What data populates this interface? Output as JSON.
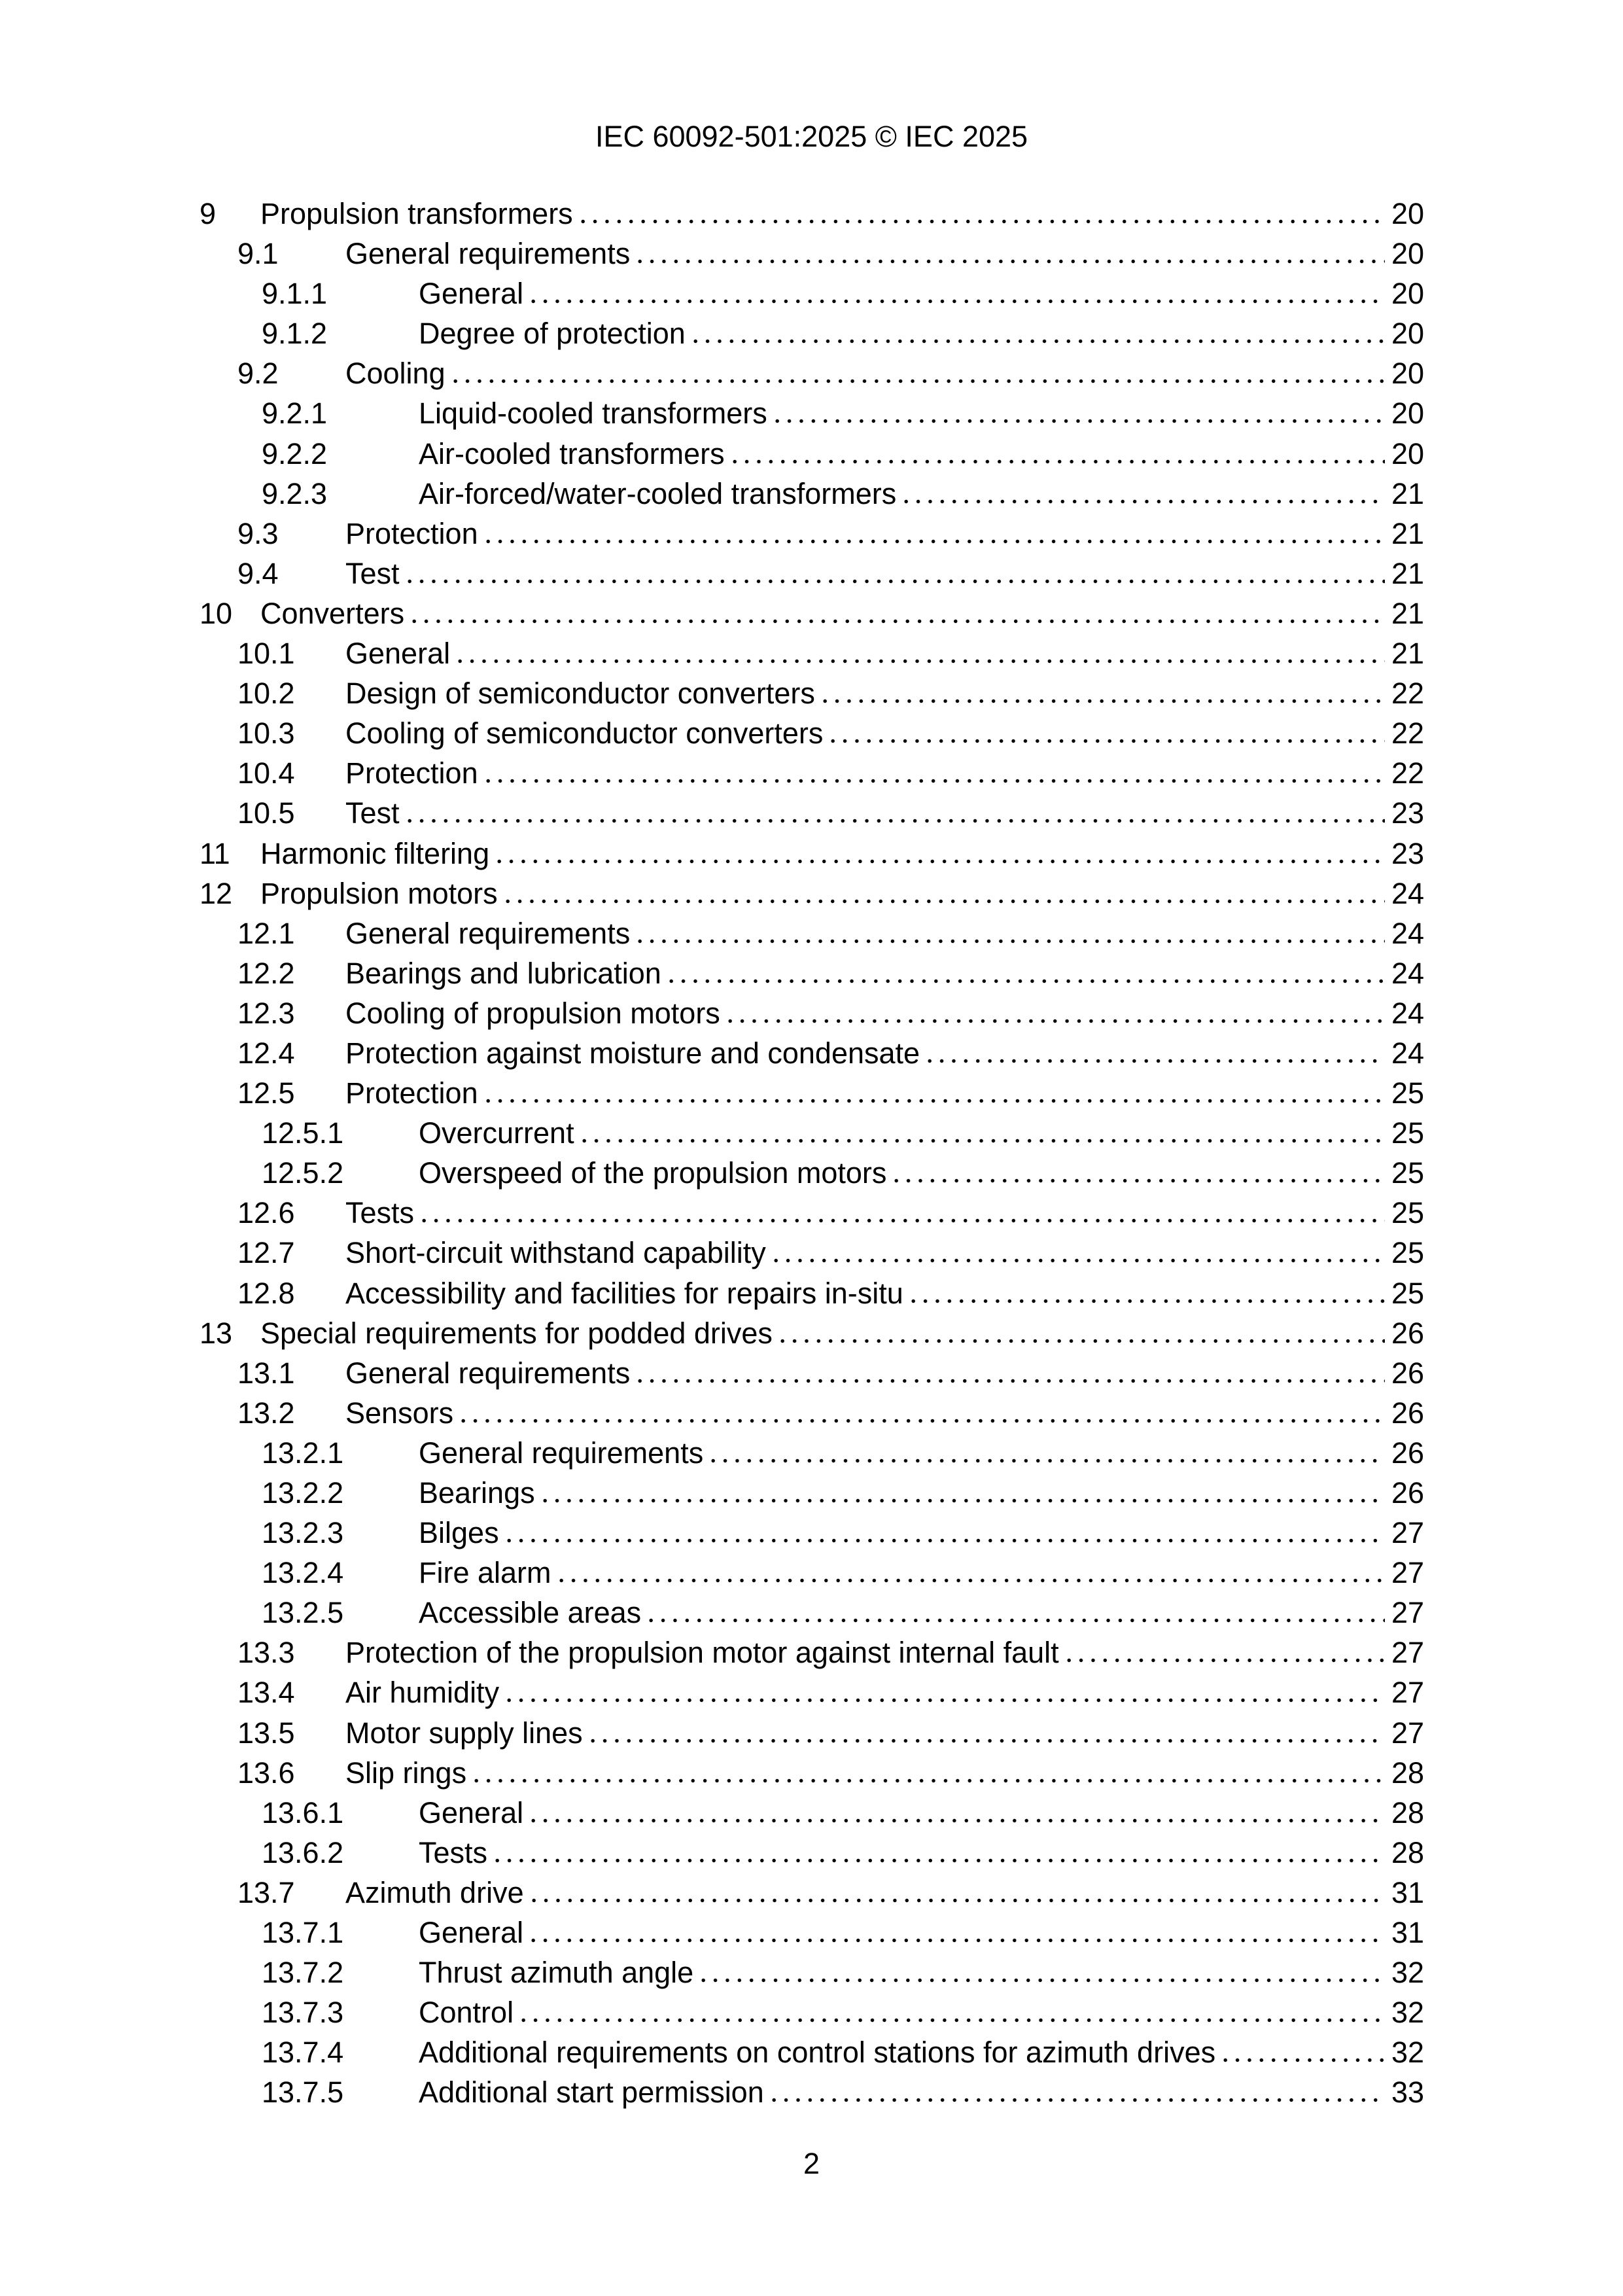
{
  "header": {
    "text": "IEC 60092-501:2025 © IEC 2025"
  },
  "footer": {
    "page_number": "2"
  },
  "toc": {
    "entries": [
      {
        "number": "9",
        "title": "Propulsion transformers",
        "page": "20",
        "level": 1
      },
      {
        "number": "9.1",
        "title": "General requirements",
        "page": "20",
        "level": 2
      },
      {
        "number": "9.1.1",
        "title": "General",
        "page": "20",
        "level": 3
      },
      {
        "number": "9.1.2",
        "title": "Degree of protection",
        "page": "20",
        "level": 3
      },
      {
        "number": "9.2",
        "title": "Cooling",
        "page": "20",
        "level": 2
      },
      {
        "number": "9.2.1",
        "title": "Liquid-cooled transformers",
        "page": "20",
        "level": 3
      },
      {
        "number": "9.2.2",
        "title": "Air-cooled transformers",
        "page": "20",
        "level": 3
      },
      {
        "number": "9.2.3",
        "title": "Air-forced/water-cooled transformers",
        "page": "21",
        "level": 3
      },
      {
        "number": "9.3",
        "title": "Protection",
        "page": "21",
        "level": 2
      },
      {
        "number": "9.4",
        "title": "Test",
        "page": "21",
        "level": 2
      },
      {
        "number": "10",
        "title": "Converters",
        "page": "21",
        "level": 1
      },
      {
        "number": "10.1",
        "title": "General",
        "page": "21",
        "level": 2
      },
      {
        "number": "10.2",
        "title": "Design of semiconductor converters",
        "page": "22",
        "level": 2
      },
      {
        "number": "10.3",
        "title": "Cooling of semiconductor converters",
        "page": "22",
        "level": 2
      },
      {
        "number": "10.4",
        "title": "Protection",
        "page": "22",
        "level": 2
      },
      {
        "number": "10.5",
        "title": "Test",
        "page": "23",
        "level": 2
      },
      {
        "number": "11",
        "title": "Harmonic filtering",
        "page": "23",
        "level": 1
      },
      {
        "number": "12",
        "title": "Propulsion motors",
        "page": "24",
        "level": 1
      },
      {
        "number": "12.1",
        "title": "General requirements",
        "page": "24",
        "level": 2
      },
      {
        "number": "12.2",
        "title": "Bearings and lubrication",
        "page": "24",
        "level": 2
      },
      {
        "number": "12.3",
        "title": "Cooling of propulsion motors",
        "page": "24",
        "level": 2
      },
      {
        "number": "12.4",
        "title": "Protection against moisture and condensate",
        "page": "24",
        "level": 2
      },
      {
        "number": "12.5",
        "title": "Protection",
        "page": "25",
        "level": 2
      },
      {
        "number": "12.5.1",
        "title": "Overcurrent",
        "page": "25",
        "level": 3
      },
      {
        "number": "12.5.2",
        "title": "Overspeed of the propulsion motors",
        "page": "25",
        "level": 3
      },
      {
        "number": "12.6",
        "title": "Tests",
        "page": "25",
        "level": 2
      },
      {
        "number": "12.7",
        "title": "Short-circuit withstand capability",
        "page": "25",
        "level": 2
      },
      {
        "number": "12.8",
        "title": "Accessibility and facilities for repairs in-situ",
        "page": "25",
        "level": 2
      },
      {
        "number": "13",
        "title": "Special requirements for podded drives",
        "page": "26",
        "level": 1
      },
      {
        "number": "13.1",
        "title": "General requirements",
        "page": "26",
        "level": 2
      },
      {
        "number": "13.2",
        "title": "Sensors",
        "page": "26",
        "level": 2
      },
      {
        "number": "13.2.1",
        "title": "General requirements",
        "page": "26",
        "level": 3
      },
      {
        "number": "13.2.2",
        "title": "Bearings",
        "page": "26",
        "level": 3
      },
      {
        "number": "13.2.3",
        "title": "Bilges",
        "page": "27",
        "level": 3
      },
      {
        "number": "13.2.4",
        "title": "Fire alarm",
        "page": "27",
        "level": 3
      },
      {
        "number": "13.2.5",
        "title": "Accessible areas",
        "page": "27",
        "level": 3
      },
      {
        "number": "13.3",
        "title": "Protection of the propulsion motor against internal fault",
        "page": "27",
        "level": 2
      },
      {
        "number": "13.4",
        "title": "Air humidity",
        "page": "27",
        "level": 2
      },
      {
        "number": "13.5",
        "title": "Motor supply lines",
        "page": "27",
        "level": 2
      },
      {
        "number": "13.6",
        "title": "Slip rings",
        "page": "28",
        "level": 2
      },
      {
        "number": "13.6.1",
        "title": "General",
        "page": "28",
        "level": 3
      },
      {
        "number": "13.6.2",
        "title": "Tests",
        "page": "28",
        "level": 3
      },
      {
        "number": "13.7",
        "title": "Azimuth drive",
        "page": "31",
        "level": 2
      },
      {
        "number": "13.7.1",
        "title": "General",
        "page": "31",
        "level": 3
      },
      {
        "number": "13.7.2",
        "title": "Thrust azimuth angle",
        "page": "32",
        "level": 3
      },
      {
        "number": "13.7.3",
        "title": "Control",
        "page": "32",
        "level": 3
      },
      {
        "number": "13.7.4",
        "title": "Additional requirements on control stations for azimuth drives",
        "page": "32",
        "level": 3
      },
      {
        "number": "13.7.5",
        "title": "Additional start permission",
        "page": "33",
        "level": 3
      }
    ]
  }
}
